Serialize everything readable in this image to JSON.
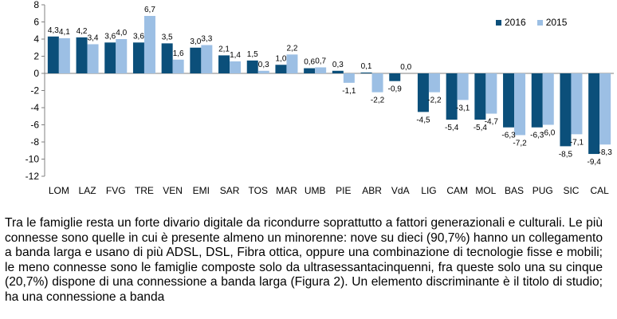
{
  "chart_data": {
    "type": "bar",
    "categories": [
      "LOM",
      "LAZ",
      "FVG",
      "TRE",
      "VEN",
      "EMI",
      "SAR",
      "TOS",
      "MAR",
      "UMB",
      "PIE",
      "ABR",
      "VdA",
      "LIG",
      "CAM",
      "MOL",
      "BAS",
      "PUG",
      "SIC",
      "CAL"
    ],
    "series": [
      {
        "name": "2016",
        "color": "#0b4f7a",
        "values": [
          4.3,
          4.2,
          3.6,
          3.6,
          3.5,
          3.0,
          2.1,
          1.5,
          1.0,
          0.6,
          0.3,
          0.1,
          -0.9,
          -4.5,
          -5.4,
          -5.4,
          -6.3,
          -6.3,
          -8.5,
          -9.4
        ]
      },
      {
        "name": "2015",
        "color": "#9cbfe4",
        "values": [
          4.1,
          3.4,
          4.0,
          6.7,
          1.6,
          3.3,
          1.4,
          0.3,
          2.2,
          0.7,
          -1.1,
          -2.2,
          0.0,
          -2.2,
          -3.1,
          -4.7,
          -7.2,
          -6.0,
          -7.1,
          -8.3
        ]
      }
    ],
    "labels": {
      "2016": [
        "4,3",
        "4,2",
        "3,6",
        "3,6",
        "3,5",
        "3,0",
        "2,1",
        "1,5",
        "1,0",
        "0,6",
        "0,3",
        "0,1",
        "-0,9",
        "-4,5",
        "-5,4",
        "-5,4",
        "-6,3",
        "-6,3",
        "-8,5",
        "-9,4"
      ],
      "2015": [
        "4,1",
        "3,4",
        "4,0",
        "6,7",
        "1,6",
        "3,3",
        "1,4",
        "0,3",
        "2,2",
        "0,7",
        "-1,1",
        "-2,2",
        "0,0",
        "-2,2",
        "-3,1",
        "-4,7",
        "-7,2",
        "-6,0",
        "-7,1",
        "-8,3"
      ]
    },
    "y_ticks": [
      "8",
      "6",
      "4",
      "2",
      "0",
      "-2",
      "-4",
      "-6",
      "-8",
      "-10",
      "-12"
    ],
    "ylim": [
      -12,
      8
    ],
    "title": "",
    "xlabel": "",
    "ylabel": "",
    "grid": false,
    "legend_position": "top-right"
  },
  "legend": {
    "items": [
      "2016",
      "2015"
    ]
  },
  "paragraph": "Tra le famiglie resta un forte divario digitale da ricondurre soprattutto a fattori generazionali e culturali. Le più connesse sono quelle in cui è presente almeno un minorenne: nove su dieci (90,7%) hanno un collegamento a banda larga e usano di più ADSL, DSL, Fibra ottica, oppure una combinazione di tecnologie fisse e mobili; le meno connesse sono le famiglie composte solo da ultrasessantacinquenni, fra queste solo una su cinque (20,7%) dispone di una connessione a banda larga (Figura 2). Un elemento discriminante è il titolo di studio; ha una connessione a banda"
}
